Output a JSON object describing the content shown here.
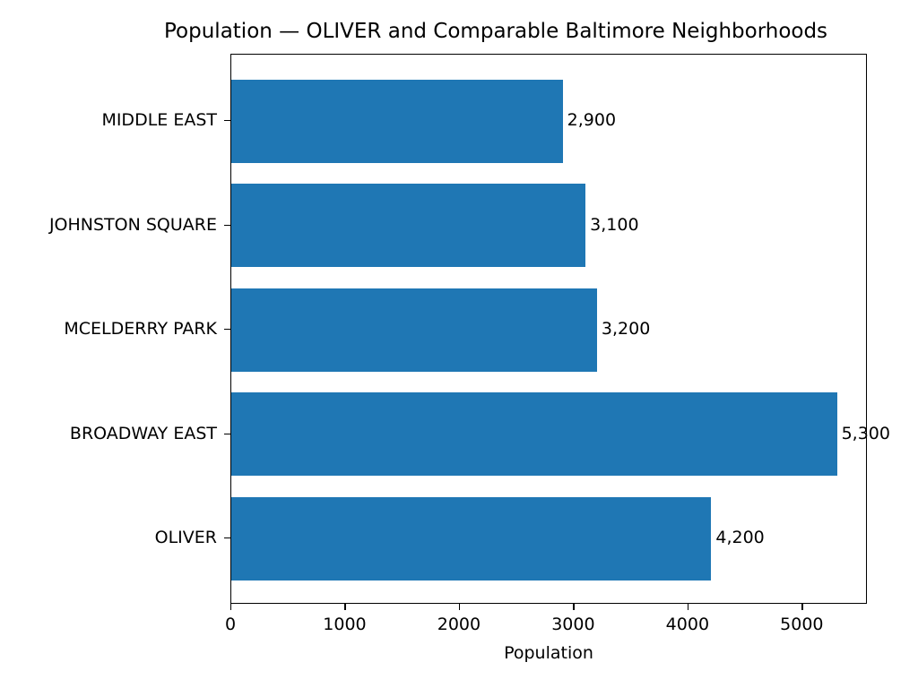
{
  "chart_data": {
    "type": "bar",
    "orientation": "horizontal",
    "title": "Population — OLIVER and Comparable Baltimore Neighborhoods",
    "xlabel": "Population",
    "ylabel": "",
    "categories": [
      "OLIVER",
      "BROADWAY EAST",
      "MCELDERRY PARK",
      "JOHNSTON SQUARE",
      "MIDDLE EAST"
    ],
    "values": [
      4200,
      5300,
      3200,
      3100,
      2900
    ],
    "data_labels": [
      "4,200",
      "5,300",
      "3,200",
      "3,100",
      "2,900"
    ],
    "xlim": [
      0,
      5570
    ],
    "xticks": [
      "0",
      "1000",
      "2000",
      "3000",
      "4000",
      "5000"
    ],
    "grid": false,
    "legend": null,
    "bar_color": "#1f77b4"
  }
}
